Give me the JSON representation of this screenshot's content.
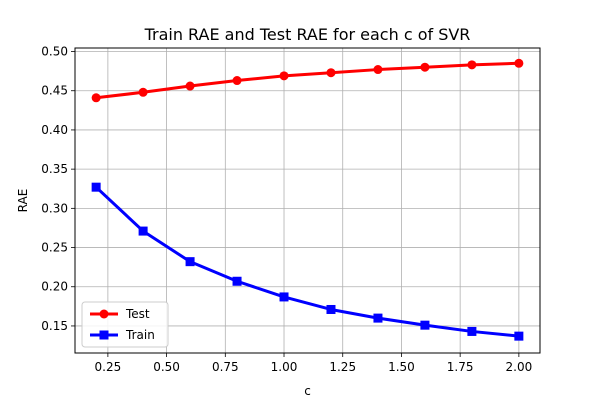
{
  "chart_data": {
    "type": "line",
    "title": "Train RAE and Test RAE for each c of SVR",
    "xlabel": "c",
    "ylabel": "RAE",
    "x": [
      0.2,
      0.4,
      0.6,
      0.8,
      1.0,
      1.2,
      1.4,
      1.6,
      1.8,
      2.0
    ],
    "xlim": [
      0.11,
      2.09
    ],
    "ylim": [
      0.1155,
      0.5045
    ],
    "xticks": [
      "0.25",
      "0.50",
      "0.75",
      "1.00",
      "1.25",
      "1.50",
      "1.75",
      "2.00"
    ],
    "yticks": [
      "0.15",
      "0.20",
      "0.25",
      "0.30",
      "0.35",
      "0.40",
      "0.45",
      "0.50"
    ],
    "grid": true,
    "legend_position": "lower-left",
    "series": [
      {
        "name": "Test",
        "color": "#ff0000",
        "marker": "circle",
        "values": [
          0.441,
          0.448,
          0.456,
          0.463,
          0.469,
          0.473,
          0.477,
          0.48,
          0.483,
          0.485
        ]
      },
      {
        "name": "Train",
        "color": "#0000ff",
        "marker": "square",
        "values": [
          0.327,
          0.271,
          0.232,
          0.207,
          0.187,
          0.171,
          0.16,
          0.151,
          0.143,
          0.137
        ]
      }
    ]
  }
}
